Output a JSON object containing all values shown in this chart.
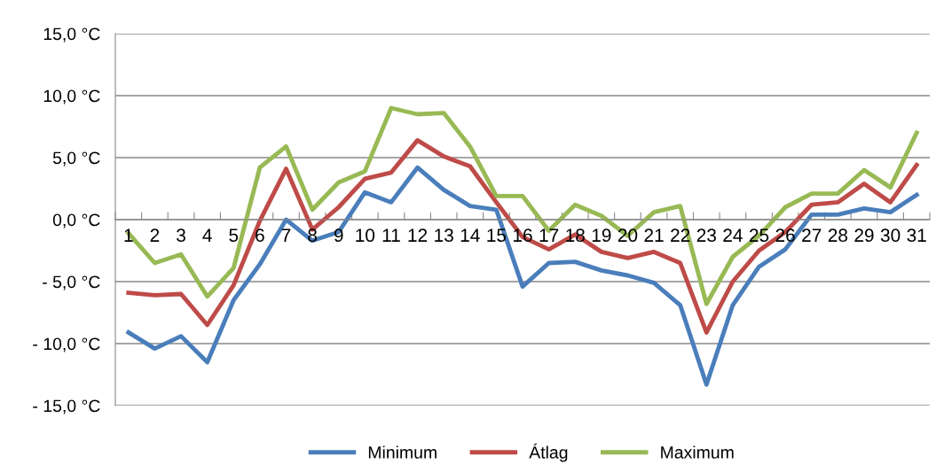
{
  "chart_data": {
    "type": "line",
    "categories": [
      "1",
      "2",
      "3",
      "4",
      "5",
      "6",
      "7",
      "8",
      "9",
      "10",
      "11",
      "12",
      "13",
      "14",
      "15",
      "16",
      "17",
      "18",
      "19",
      "20",
      "21",
      "22",
      "23",
      "24",
      "25",
      "26",
      "27",
      "28",
      "29",
      "30",
      "31"
    ],
    "series": [
      {
        "name": "Minimum",
        "color": "#4a7ebb",
        "values": [
          -9.1,
          -10.4,
          -9.4,
          -11.5,
          -6.5,
          -3.6,
          0.0,
          -1.7,
          -1.0,
          2.2,
          1.4,
          4.2,
          2.4,
          1.1,
          0.8,
          -5.4,
          -3.5,
          -3.4,
          -4.1,
          -4.5,
          -5.1,
          -6.9,
          -13.3,
          -6.9,
          -3.8,
          -2.4,
          0.4,
          0.4,
          0.9,
          0.6,
          2.0
        ]
      },
      {
        "name": "Átlag",
        "color": "#be4b48",
        "values": [
          -5.9,
          -6.1,
          -6.0,
          -8.5,
          -5.3,
          -0.1,
          4.1,
          -0.8,
          1.0,
          3.3,
          3.8,
          6.4,
          5.1,
          4.3,
          1.4,
          -1.4,
          -2.4,
          -1.2,
          -2.6,
          -3.1,
          -2.6,
          -3.5,
          -9.1,
          -5.0,
          -2.5,
          -1.0,
          1.2,
          1.4,
          2.9,
          1.4,
          4.4
        ]
      },
      {
        "name": "Maximum",
        "color": "#98b954",
        "values": [
          -1.1,
          -3.5,
          -2.8,
          -6.2,
          -3.9,
          4.2,
          5.9,
          0.8,
          3.0,
          3.9,
          9.0,
          8.5,
          8.6,
          5.9,
          1.9,
          1.9,
          -0.9,
          1.2,
          0.3,
          -1.3,
          0.6,
          1.1,
          -6.8,
          -3.0,
          -1.3,
          1.0,
          2.1,
          2.1,
          4.0,
          2.6,
          7.0
        ]
      }
    ],
    "ylim": [
      -15,
      15
    ],
    "yticks": [
      {
        "value": -15,
        "label": "- 15,0 °C"
      },
      {
        "value": -10,
        "label": "- 10,0 °C"
      },
      {
        "value": -5,
        "label": "- 5,0 °C"
      },
      {
        "value": 0,
        "label": "0,0 °C"
      },
      {
        "value": 5,
        "label": "5,0 °C"
      },
      {
        "value": 10,
        "label": "10,0 °C"
      },
      {
        "value": 15,
        "label": "15,0 °C"
      }
    ],
    "grid": "y",
    "legend": "bottom",
    "marker": "none",
    "line_style": "solid"
  }
}
